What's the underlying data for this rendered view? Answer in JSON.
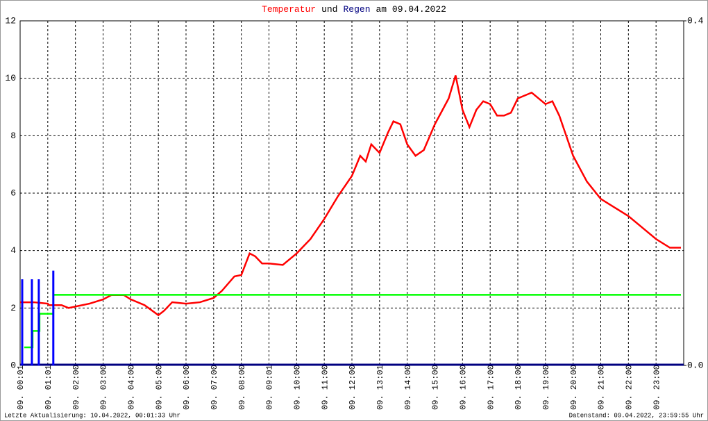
{
  "chart_data": {
    "type": "line",
    "title": [
      "Temperatur",
      "und",
      "Regen",
      "am 09.04.2022"
    ],
    "title_colors": [
      "#ff0000",
      "#000000",
      "#000080",
      "#000000"
    ],
    "footer_left": "Letzte Aktualisierung: 10.04.2022, 00:01:33 Uhr",
    "footer_right": "Datenstand: 09.04.2022, 23:59:55 Uhr",
    "xlim": [
      0,
      24
    ],
    "xticks": [
      {
        "value": 0,
        "label": "09. 00:01"
      },
      {
        "value": 1,
        "label": "09. 01:01"
      },
      {
        "value": 2,
        "label": "09. 02:00"
      },
      {
        "value": 3,
        "label": "09. 03:00"
      },
      {
        "value": 4,
        "label": "09. 04:00"
      },
      {
        "value": 5,
        "label": "09. 05:00"
      },
      {
        "value": 6,
        "label": "09. 06:00"
      },
      {
        "value": 7,
        "label": "09. 07:00"
      },
      {
        "value": 8,
        "label": "09. 08:00"
      },
      {
        "value": 9,
        "label": "09. 09:01"
      },
      {
        "value": 10,
        "label": "09. 10:00"
      },
      {
        "value": 11,
        "label": "09. 11:00"
      },
      {
        "value": 12,
        "label": "09. 12:00"
      },
      {
        "value": 13,
        "label": "09. 13:01"
      },
      {
        "value": 14,
        "label": "09. 14:00"
      },
      {
        "value": 15,
        "label": "09. 15:00"
      },
      {
        "value": 16,
        "label": "09. 16:00"
      },
      {
        "value": 17,
        "label": "09. 17:00"
      },
      {
        "value": 18,
        "label": "09. 18:00"
      },
      {
        "value": 19,
        "label": "09. 19:00"
      },
      {
        "value": 20,
        "label": "09. 20:00"
      },
      {
        "value": 21,
        "label": "09. 21:00"
      },
      {
        "value": 22,
        "label": "09. 22:00"
      },
      {
        "value": 23,
        "label": "09. 23:00"
      }
    ],
    "ylim": [
      0,
      12
    ],
    "yticks": [
      0,
      2,
      4,
      6,
      8,
      10,
      12
    ],
    "y2lim": [
      0,
      0.4
    ],
    "y2ticks": [
      {
        "value": 0,
        "label": "0.0"
      },
      {
        "value": 0.4,
        "label": "0.4"
      }
    ],
    "grid": true,
    "series": [
      {
        "type": "line",
        "color": "#ff0000",
        "x": [
          0,
          0.5,
          1,
          1.05,
          1.5,
          1.75,
          2,
          2.5,
          3,
          3.3,
          3.75,
          4,
          4.5,
          5,
          5.2,
          5.5,
          6,
          6.5,
          7,
          7.3,
          7.75,
          8,
          8.3,
          8.5,
          8.75,
          9,
          9.5,
          10,
          10.5,
          11,
          11.5,
          12,
          12.3,
          12.5,
          12.7,
          13,
          13.3,
          13.5,
          13.75,
          14,
          14.3,
          14.6,
          15,
          15.5,
          15.75,
          16,
          16.25,
          16.5,
          16.75,
          17,
          17.25,
          17.5,
          17.75,
          18,
          18.5,
          18.75,
          19,
          19.25,
          19.5,
          20,
          20.5,
          21,
          21.5,
          22,
          22.5,
          23,
          23.5,
          23.9
        ],
        "values": [
          2.2,
          2.2,
          2.15,
          2.1,
          2.1,
          2.0,
          2.05,
          2.15,
          2.3,
          2.45,
          2.45,
          2.3,
          2.1,
          1.75,
          1.9,
          2.2,
          2.15,
          2.2,
          2.35,
          2.6,
          3.1,
          3.15,
          3.9,
          3.8,
          3.55,
          3.55,
          3.5,
          3.9,
          4.4,
          5.1,
          5.9,
          6.6,
          7.3,
          7.1,
          7.7,
          7.4,
          8.1,
          8.5,
          8.4,
          7.7,
          7.3,
          7.5,
          8.4,
          9.3,
          10.1,
          8.9,
          8.3,
          8.9,
          9.2,
          9.1,
          8.7,
          8.7,
          8.8,
          9.3,
          9.5,
          9.3,
          9.1,
          9.2,
          8.7,
          7.3,
          6.4,
          5.8,
          5.5,
          5.2,
          4.8,
          4.4,
          4.1,
          4.1
        ]
      },
      {
        "type": "step",
        "axis": "y2",
        "color": "#00ff00",
        "x": [
          0.15,
          0.45,
          0.7,
          1.2,
          23.9
        ],
        "values": [
          0.021,
          0.04,
          0.06,
          0.082,
          0.082
        ]
      },
      {
        "type": "bar",
        "axis": "y2",
        "color": "#0000ff",
        "x": [
          0.075,
          0.425,
          0.675,
          1.2
        ],
        "values": [
          0.1,
          0.1,
          0.1,
          0.11
        ]
      }
    ]
  }
}
